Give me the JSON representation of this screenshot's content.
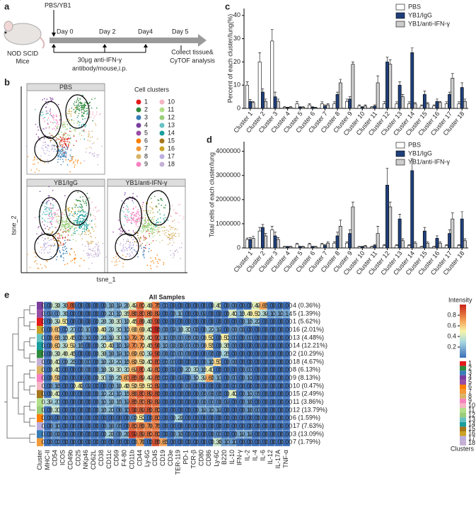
{
  "panel_a": {
    "label": "a",
    "mouse_line1": "NOD SCID",
    "mouse_line2": "Mice",
    "treatment": "PBS/YB1",
    "days": [
      "Day 0",
      "Day 2",
      "Day4",
      "Day 5"
    ],
    "antibody_line1": "30μg anti-IFN-γ",
    "antibody_line2": "antibody/mouse,i.p.",
    "collect_line1": "Collect tissue&",
    "collect_line2": "CyTOF analysis"
  },
  "panel_b": {
    "label": "b",
    "groups": [
      "PBS",
      "YB1/IgG",
      "YB1/anti-IFN-γ"
    ],
    "legend_title": "Cell clusters",
    "clusters": [
      1,
      2,
      3,
      4,
      5,
      6,
      7,
      8,
      9,
      10,
      11,
      12,
      13,
      14,
      15,
      16,
      17,
      18
    ],
    "colors": [
      "#e41a1c",
      "#2e8b3d",
      "#377eb8",
      "#7b3f9e",
      "#984ea3",
      "#ff7f00",
      "#f29a3a",
      "#d8b365",
      "#f781bf",
      "#f4b6c2",
      "#b2df8a",
      "#9acd7a",
      "#66c2c2",
      "#1b9e9e",
      "#a6761d",
      "#c9a227",
      "#bcaee0",
      "#c5b0d5"
    ],
    "x_label": "tsne_1",
    "y_label": "tsne_2"
  },
  "chart_data": [
    {
      "type": "bar",
      "label": "c",
      "y_label": "Percent of each cluster/lung(%)",
      "categories": [
        "Cluster 1",
        "Cluster 2",
        "Cluster 3",
        "Cluster 4",
        "Cluster 5",
        "Cluster 6",
        "Cluster 7",
        "Cluster 8",
        "Cluster 9",
        "Cluster 10",
        "Cluster 11",
        "Cluster 12",
        "Cluster 13",
        "Cluster 14",
        "Cluster 15",
        "Cluster 16",
        "Cluster 17",
        "Cluster 18"
      ],
      "ylim": [
        0,
        43
      ],
      "yticks": [
        0,
        10,
        20,
        30,
        40
      ],
      "series": [
        {
          "name": "PBS",
          "color": "#ffffff",
          "values": [
            10,
            20,
            29,
            0.5,
            2,
            1.5,
            2,
            2,
            3,
            1,
            0.5,
            2,
            2,
            2,
            1,
            1,
            2,
            2
          ],
          "errors": [
            1.5,
            4,
            5,
            0.3,
            1,
            0.5,
            0.8,
            0.8,
            1,
            0.5,
            0.3,
            1,
            0.8,
            0.8,
            0.5,
            0.5,
            0.8,
            0.8
          ]
        },
        {
          "name": "YB1/IgG",
          "color": "#1f3f7a",
          "values": [
            3,
            7,
            5,
            0.3,
            0.5,
            0.5,
            1,
            6,
            4,
            0.5,
            1,
            20,
            10,
            24,
            6,
            3,
            6,
            9
          ],
          "errors": [
            0.8,
            1.5,
            2,
            0.2,
            0.3,
            0.3,
            0.5,
            1,
            1,
            0.3,
            0.5,
            2,
            1.5,
            2,
            1.5,
            1,
            1,
            2
          ]
        },
        {
          "name": "YB1/anti-IFN-γ",
          "color": "#cccccc",
          "values": [
            2.5,
            3,
            3,
            0.5,
            0.5,
            0.3,
            1.5,
            11,
            19,
            1,
            11,
            19,
            5,
            2,
            2,
            2.5,
            13,
            3
          ],
          "errors": [
            0.5,
            1,
            1,
            0.2,
            0.3,
            0.2,
            0.5,
            1.5,
            1,
            0.5,
            3,
            2,
            1,
            0.5,
            0.5,
            0.5,
            2,
            1
          ]
        }
      ]
    },
    {
      "type": "bar",
      "label": "d",
      "y_label": "Total cells of each cluster/lung",
      "categories": [
        "Cluster 1",
        "Cluster 2",
        "Cluster 3",
        "Cluster 4",
        "Cluster 5",
        "Cluster 6",
        "Cluster 7",
        "Cluster 8",
        "Cluster 9",
        "Cluster 10",
        "Cluster 11",
        "Cluster 12",
        "Cluster 13",
        "Cluster 14",
        "Cluster 15",
        "Cluster 16",
        "Cluster 17",
        "Cluster 18"
      ],
      "ylim": [
        0,
        4400000
      ],
      "yticks": [
        0,
        1000000,
        2000000,
        3000000,
        4000000
      ],
      "series": [
        {
          "name": "PBS",
          "color": "#ffffff",
          "values": [
            350000,
            700000,
            750000,
            50000,
            150000,
            150000,
            150000,
            200000,
            200000,
            50000,
            50000,
            100000,
            100000,
            100000,
            50000,
            50000,
            100000,
            100000
          ],
          "errors": [
            60000,
            150000,
            150000,
            20000,
            40000,
            40000,
            40000,
            50000,
            50000,
            20000,
            20000,
            40000,
            30000,
            30000,
            20000,
            20000,
            30000,
            30000
          ]
        },
        {
          "name": "YB1/IgG",
          "color": "#1f3f7a",
          "values": [
            350000,
            850000,
            500000,
            50000,
            50000,
            50000,
            100000,
            500000,
            600000,
            50000,
            100000,
            2600000,
            1200000,
            3200000,
            700000,
            400000,
            600000,
            1200000
          ],
          "errors": [
            80000,
            120000,
            150000,
            20000,
            20000,
            20000,
            40000,
            150000,
            150000,
            20000,
            40000,
            700000,
            200000,
            500000,
            150000,
            100000,
            150000,
            300000
          ]
        },
        {
          "name": "YB1/anti-IFN-γ",
          "color": "#cccccc",
          "values": [
            400000,
            500000,
            350000,
            50000,
            50000,
            50000,
            200000,
            900000,
            1700000,
            80000,
            600000,
            1700000,
            300000,
            200000,
            200000,
            200000,
            1200000,
            300000
          ],
          "errors": [
            80000,
            100000,
            80000,
            20000,
            20000,
            20000,
            60000,
            250000,
            200000,
            30000,
            300000,
            200000,
            80000,
            60000,
            60000,
            60000,
            250000,
            80000
          ]
        }
      ]
    }
  ],
  "heatmap": {
    "label": "e",
    "title": "All Samples",
    "colorbar_title": "Intensity",
    "colorbar_lim": [
      0,
      1
    ],
    "colorbar_ticks": [
      0.2,
      0.4,
      0.6,
      0.8
    ],
    "legend_title": "Clusters",
    "strip_label": "Cluster",
    "columns": [
      "MHC-II",
      "CD54",
      "ICOS",
      "CD49b",
      "CD25",
      "NKp46",
      "CD62L",
      "CD38",
      "CD11c",
      "CD69",
      "F4-80",
      "CD11b",
      "CD44",
      "Ly-6G",
      "CD45",
      "CD19",
      "CD3e",
      "TER-119",
      "PD-1",
      "TCR-β",
      "CD80",
      "CD86",
      "Ly-6C",
      "B220",
      "IL-10",
      "IFN-γ",
      "IL-2",
      "IL-4",
      "IL-6",
      "IL-12",
      "IL-17A",
      "TNF-α"
    ],
    "row_labels": [
      "4 (0.36%)",
      "5 (1.39%)",
      "1 (5.62%)",
      "16 (2.01%)",
      "13 (4.48%)",
      "14 (12.21%)",
      "2 (10.29%)",
      "18 (4.67%)",
      "8 (6.13%)",
      "9 (8.13%)",
      "10 (0.47%)",
      "15 (2.49%)",
      "11 (3.86%)",
      "12 (13.79%)",
      "6 (1.59%)",
      "17 (7.63%)",
      "3 (13.09%)",
      "7 (1.79%)"
    ],
    "row_clusters": [
      4,
      5,
      1,
      16,
      13,
      14,
      2,
      18,
      8,
      9,
      10,
      15,
      11,
      12,
      6,
      17,
      3,
      7
    ],
    "cells": [
      [
        "0.00",
        "0.38",
        "0.30",
        "0.86",
        "0.00",
        "0.00",
        "0.00",
        "0.00",
        "0.18",
        "0.14",
        "0.20",
        "0.44",
        "0.82",
        "0.46",
        "0.79",
        "0.03",
        "0.00",
        "0.00",
        "0.00",
        "0.00",
        "0.00",
        "0.00",
        "0.41",
        "0.00",
        "0.06",
        "0.00",
        "0.00",
        "0.44",
        "0.69",
        "0.00",
        "0.00",
        "0.00"
      ],
      [
        "0.04",
        "0.07",
        "0.30",
        "0.00",
        "0.00",
        "0.00",
        "0.00",
        "0.00",
        "0.21",
        "0.13",
        "0.39",
        "0.80",
        "0.87",
        "0.80",
        "0.84",
        "0.00",
        "0.00",
        "0.17",
        "0.00",
        "0.00",
        "0.04",
        "0.00",
        "0.00",
        "0.00",
        "0.42",
        "0.15",
        "0.46",
        "0.52",
        "0.34",
        "0.11",
        "0.13",
        "0.14"
      ],
      [
        "0.00",
        "0.34",
        "0.51",
        "0.00",
        "0.00",
        "0.00",
        "0.00",
        "0.26",
        "0.30",
        "0.37",
        "0.18",
        "0.49",
        "0.86",
        "0.40",
        "0.90",
        "0.00",
        "0.00",
        "0.00",
        "0.00",
        "0.00",
        "0.00",
        "0.00",
        "0.00",
        "0.00",
        "0.00",
        "0.00",
        "0.15",
        "0.22",
        "0.00",
        "0.00",
        "0.00",
        "0.00"
      ],
      [
        "0.00",
        "0.61",
        "0.02",
        "0.27",
        "0.02",
        "0.17",
        "0.00",
        "0.48",
        "0.24",
        "0.33",
        "0.12",
        "0.60",
        "0.66",
        "0.43",
        "0.99",
        "0.08",
        "0.04",
        "0.10",
        "0.33",
        "0.08",
        "0.00",
        "0.22",
        "0.14",
        "0.00",
        "0.08",
        "0.08",
        "0.00",
        "0.00",
        "0.00",
        "0.00",
        "0.00",
        "0.00"
      ],
      [
        "0.00",
        "0.65",
        "0.19",
        "0.49",
        "0.03",
        "0.12",
        "0.00",
        "0.28",
        "0.14",
        "0.37",
        "0.14",
        "0.74",
        "0.72",
        "0.42",
        "0.91",
        "0.11",
        "0.05",
        "0.07",
        "0.09",
        "0.08",
        "0.06",
        "0.53",
        "0.00",
        "0.52",
        "0.07",
        "0.00",
        "0.07",
        "0.00",
        "0.00",
        "0.00",
        "0.00",
        "0.00"
      ],
      [
        "0.00",
        "0.62",
        "0.34",
        "0.54",
        "0.15",
        "0.00",
        "0.00",
        "0.33",
        "0.48",
        "0.12",
        "0.14",
        "0.77",
        "0.72",
        "0.45",
        "0.90",
        "0.13",
        "0.08",
        "0.08",
        "0.07",
        "0.05",
        "0.06",
        "0.55",
        "0.00",
        "0.39",
        "0.05",
        "0.00",
        "0.00",
        "0.00",
        "0.00",
        "0.00",
        "0.00",
        "0.00"
      ],
      [
        "0.00",
        "0.38",
        "0.40",
        "0.45",
        "0.00",
        "0.00",
        "0.00",
        "0.36",
        "0.16",
        "0.14",
        "0.13",
        "0.68",
        "0.63",
        "0.34",
        "0.90",
        "0.06",
        "0.03",
        "0.07",
        "0.06",
        "0.00",
        "0.00",
        "0.05",
        "0.00",
        "0.29",
        "0.00",
        "0.00",
        "0.00",
        "0.00",
        "0.00",
        "0.00",
        "0.00",
        "0.00"
      ],
      [
        "0.00",
        "0.42",
        "0.06",
        "0.25",
        "0.00",
        "0.07",
        "0.00",
        "0.18",
        "0.24",
        "0.23",
        "0.15",
        "0.68",
        "0.58",
        "0.43",
        "0.87",
        "0.02",
        "0.07",
        "0.00",
        "0.00",
        "0.00",
        "0.00",
        "0.13",
        "0.57",
        "0.00",
        "0.08",
        "0.00",
        "0.00",
        "0.00",
        "0.00",
        "0.00",
        "0.00",
        "0.00"
      ],
      [
        "0.00",
        "0.43",
        "0.00",
        "0.00",
        "0.00",
        "0.06",
        "0.00",
        "0.16",
        "0.34",
        "0.37",
        "0.32",
        "0.64",
        "0.87",
        "0.44",
        "0.82",
        "0.00",
        "0.04",
        "0.00",
        "0.21",
        "0.32",
        "0.15",
        "0.47",
        "0.00",
        "0.00",
        "0.00",
        "0.00",
        "0.07",
        "0.00",
        "0.00",
        "0.00",
        "0.00",
        "0.00"
      ],
      [
        "0.00",
        "0.58",
        "0.00",
        "0.00",
        "0.00",
        "0.00",
        "0.00",
        "0.37",
        "0.15",
        "0.29",
        "0.67",
        "0.85",
        "0.84",
        "0.44",
        "0.85",
        "0.02",
        "0.00",
        "0.04",
        "0.00",
        "0.13",
        "0.34",
        "0.68",
        "0.17",
        "0.00",
        "0.07",
        "0.00",
        "0.12",
        "0.00",
        "0.00",
        "0.00",
        "0.00",
        "0.00"
      ],
      [
        "0.00",
        "0.15",
        "0.00",
        "0.00",
        "0.48",
        "0.04",
        "0.00",
        "0.00",
        "0.05",
        "0.16",
        "0.48",
        "0.58",
        "0.59",
        "0.52",
        "0.84",
        "0.00",
        "0.00",
        "0.00",
        "0.06",
        "0.00",
        "0.00",
        "0.00",
        "0.00",
        "0.00",
        "0.01",
        "0.00",
        "0.00",
        "0.00",
        "0.00",
        "0.00",
        "0.00",
        "0.00"
      ],
      [
        "0.00",
        "0.42",
        "0.00",
        "0.00",
        "0.00",
        "0.00",
        "0.00",
        "0.12",
        "0.22",
        "0.12",
        "0.19",
        "0.80",
        "0.87",
        "0.84",
        "0.88",
        "0.00",
        "0.00",
        "0.00",
        "0.00",
        "0.00",
        "0.05",
        "0.08",
        "0.05",
        "0.00",
        "0.43",
        "0.00",
        "0.12",
        "0.09",
        "0.00",
        "0.00",
        "0.00",
        "0.00"
      ],
      [
        "0.34",
        "0.27",
        "0.00",
        "0.00",
        "0.00",
        "0.00",
        "0.00",
        "0.12",
        "0.18",
        "0.19",
        "0.14",
        "0.85",
        "0.81",
        "0.84",
        "0.84",
        "0.00",
        "0.00",
        "0.00",
        "0.00",
        "0.00",
        "0.08",
        "0.07",
        "0.06",
        "0.04",
        "0.00",
        "0.00",
        "0.10",
        "0.00",
        "0.00",
        "0.00",
        "0.00",
        "0.00"
      ],
      [
        "0.00",
        "0.37",
        "0.00",
        "0.00",
        "0.00",
        "0.00",
        "0.00",
        "0.15",
        "0.22",
        "0.06",
        "0.11",
        "0.90",
        "0.84",
        "0.88",
        "0.82",
        "0.00",
        "0.00",
        "0.00",
        "0.00",
        "0.00",
        "0.14",
        "0.12",
        "0.14",
        "0.00",
        "0.00",
        "0.00",
        "0.10",
        "0.07",
        "0.00",
        "0.00",
        "0.00",
        "0.00"
      ],
      [
        "0.00",
        "0.00",
        "0.00",
        "0.00",
        "0.00",
        "0.00",
        "0.00",
        "0.00",
        "0.00",
        "0.00",
        "0.00",
        "0.08",
        "0.52",
        "0.00",
        "0.81",
        "0.00",
        "0.00",
        "0.28",
        "0.00",
        "0.00",
        "0.00",
        "0.00",
        "0.00",
        "0.00",
        "0.00",
        "0.00",
        "0.00",
        "0.00",
        "0.00",
        "0.00",
        "0.00",
        "0.00"
      ],
      [
        "0.00",
        "0.11",
        "0.00",
        "0.00",
        "0.00",
        "0.00",
        "0.00",
        "0.00",
        "0.10",
        "0.09",
        "0.00",
        "0.83",
        "0.80",
        "0.76",
        "0.79",
        "0.00",
        "0.00",
        "0.00",
        "0.00",
        "0.00",
        "0.00",
        "0.00",
        "0.00",
        "0.00",
        "0.00",
        "0.00",
        "0.00",
        "0.00",
        "0.00",
        "0.00",
        "0.00",
        "0.00"
      ],
      [
        "0.00",
        "0.08",
        "0.00",
        "0.00",
        "0.00",
        "0.00",
        "0.00",
        "0.00",
        "0.28",
        "0.06",
        "0.20",
        "0.94",
        "0.84",
        "0.82",
        "0.83",
        "0.00",
        "0.00",
        "0.15",
        "0.00",
        "0.00",
        "0.00",
        "0.00",
        "0.07",
        "0.00",
        "0.00",
        "0.14",
        "0.14",
        "0.00",
        "0.00",
        "0.00",
        "0.00",
        "0.00"
      ],
      [
        "0.00",
        "0.03",
        "0.00",
        "0.00",
        "0.00",
        "0.00",
        "0.00",
        "0.00",
        "0.00",
        "0.00",
        "0.00",
        "0.00",
        "0.70",
        "0.00",
        "0.89",
        "0.69",
        "0.00",
        "0.00",
        "0.00",
        "0.00",
        "0.00",
        "0.00",
        "0.38",
        "0.11",
        "0.11",
        "0.00",
        "0.00",
        "0.00",
        "0.00",
        "0.00",
        "0.00",
        "0.00"
      ]
    ]
  }
}
